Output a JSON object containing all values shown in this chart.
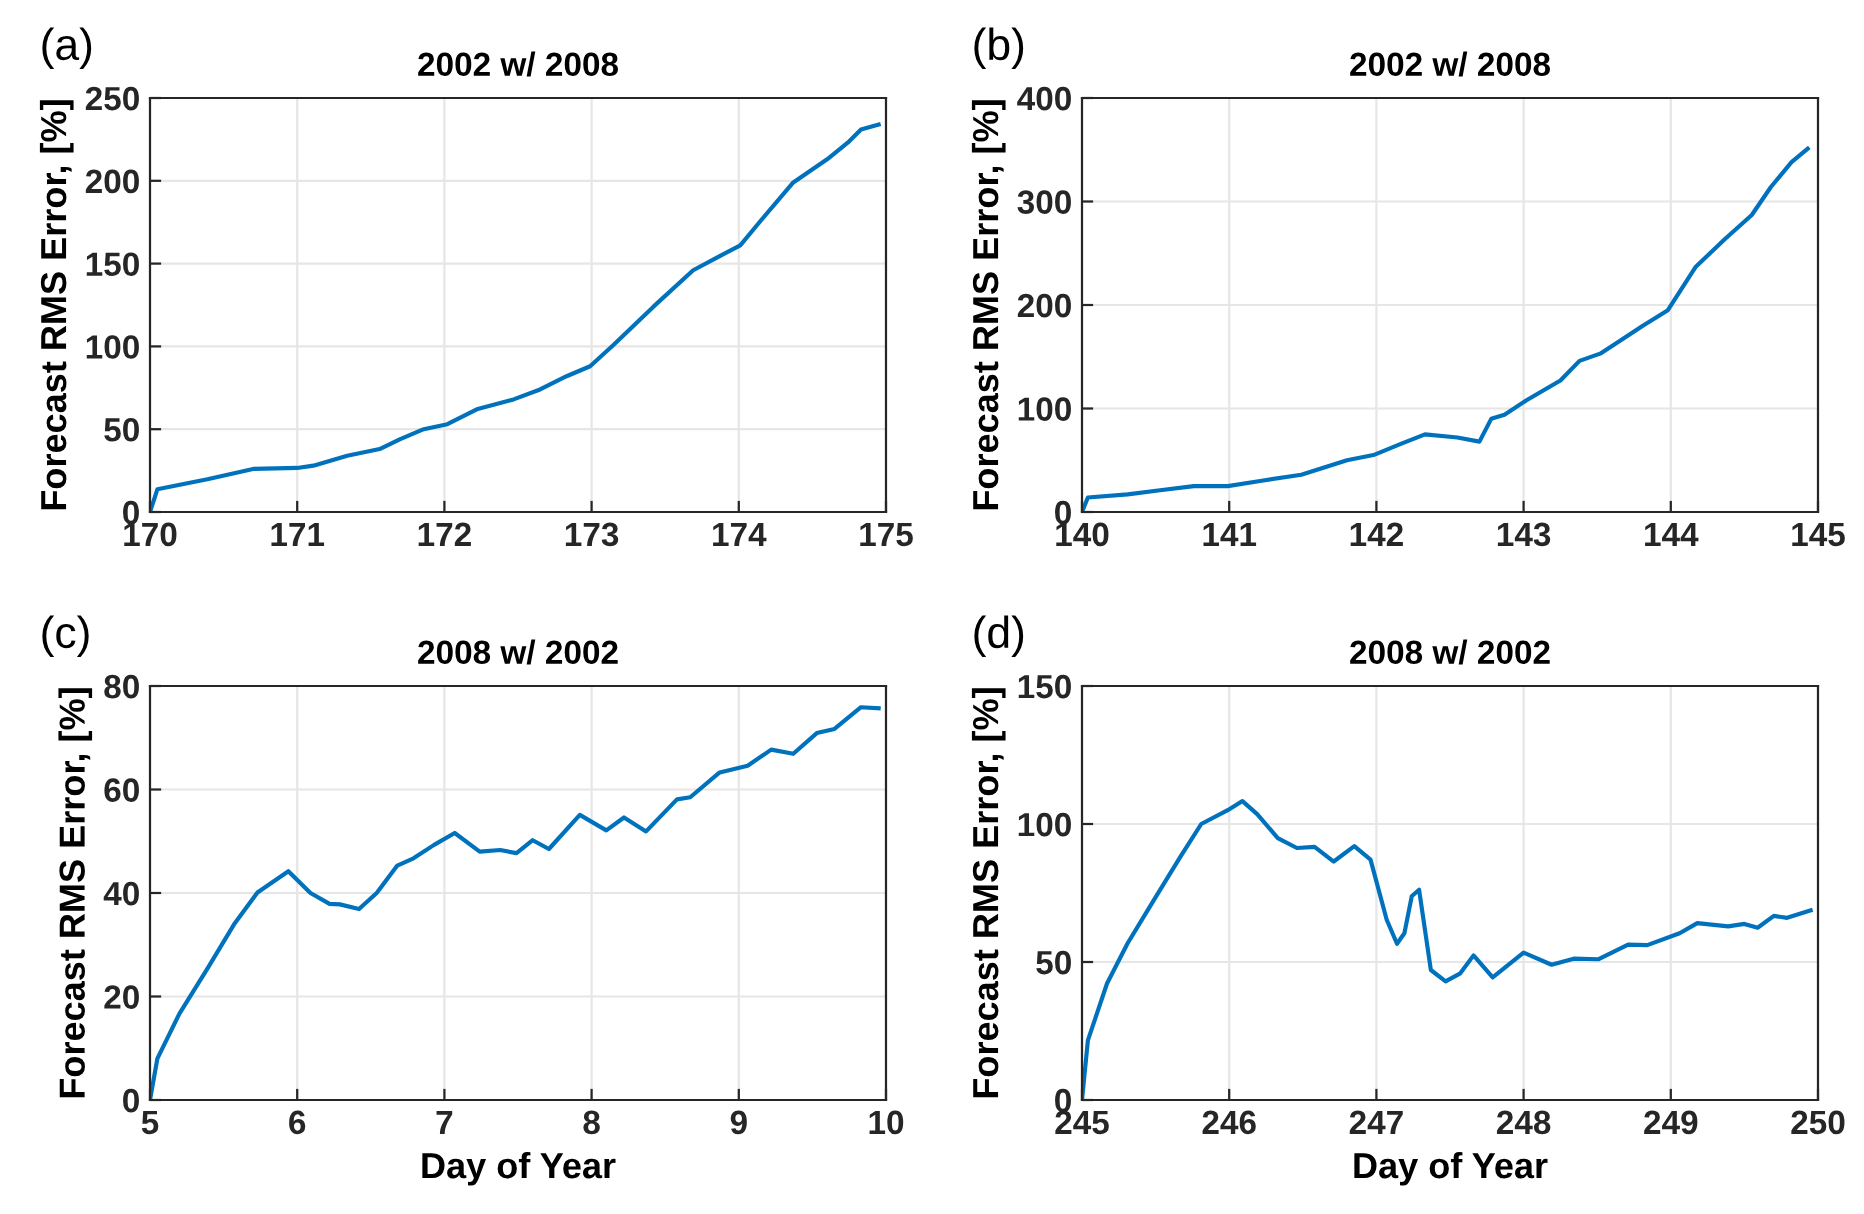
{
  "chart_data": [
    {
      "type": "line",
      "title": "2002 w/ 2008",
      "ylabel": "Forecast RMS Error, [%]",
      "annotations": [
        "(a)"
      ],
      "grid": true,
      "x": [
        170,
        170.05,
        170.39,
        170.7,
        171.0,
        171.11,
        171.34,
        171.56,
        171.7,
        171.86,
        172.02,
        172.22,
        172.47,
        172.65,
        172.83,
        172.99,
        173.15,
        173.42,
        173.69,
        173.88,
        174.01,
        174.15,
        174.37,
        174.6,
        174.74,
        174.83,
        174.95
      ],
      "series": [
        {
          "color": "#0072bd",
          "values": [
            0,
            13.7,
            19.8,
            26,
            26.6,
            28,
            34,
            38,
            44,
            50,
            53,
            62,
            68,
            74,
            82,
            88,
            101,
            124,
            146,
            155,
            161,
            176,
            199,
            213,
            223,
            231,
            234
          ]
        }
      ],
      "xlim": [
        170,
        175
      ],
      "xticks": [
        170,
        171,
        172,
        173,
        174,
        175
      ],
      "ylim": [
        0,
        250
      ],
      "yticks": [
        0,
        50,
        100,
        150,
        200,
        250
      ]
    },
    {
      "type": "line",
      "title": "2002 w/ 2008",
      "ylabel": "Forecast RMS Error, [%]",
      "annotations": [
        "(b)"
      ],
      "grid": true,
      "x": [
        140,
        140.04,
        140.31,
        140.53,
        140.76,
        140.99,
        141.21,
        141.49,
        141.8,
        141.98,
        142.17,
        142.33,
        142.55,
        142.7,
        142.78,
        142.87,
        143.02,
        143.25,
        143.38,
        143.52,
        143.65,
        143.81,
        143.98,
        144.17,
        144.37,
        144.55,
        144.68,
        144.82,
        144.93
      ],
      "series": [
        {
          "color": "#0072bd",
          "values": [
            0,
            14,
            17,
            21,
            25,
            25,
            30,
            36,
            50,
            55,
            66,
            75,
            72,
            68,
            90,
            94,
            108,
            127,
            146,
            153,
            165,
            180,
            195,
            237,
            264,
            287,
            314,
            338,
            351
          ]
        }
      ],
      "xlim": [
        140,
        145
      ],
      "xticks": [
        140,
        141,
        142,
        143,
        144,
        145
      ],
      "ylim": [
        0,
        400
      ],
      "yticks": [
        0,
        100,
        200,
        300,
        400
      ]
    },
    {
      "type": "line",
      "title": "2008 w/ 2002",
      "xlabel": "Day of Year",
      "ylabel": "Forecast RMS Error, [%]",
      "annotations": [
        "(c)"
      ],
      "grid": true,
      "x": [
        5,
        5.05,
        5.2,
        5.39,
        5.57,
        5.73,
        5.94,
        6.09,
        6.22,
        6.29,
        6.42,
        6.54,
        6.68,
        6.79,
        6.93,
        7.07,
        7.24,
        7.38,
        7.49,
        7.6,
        7.71,
        7.92,
        8.1,
        8.22,
        8.37,
        8.58,
        8.67,
        8.87,
        9.06,
        9.22,
        9.37,
        9.53,
        9.65,
        9.83,
        9.95
      ],
      "series": [
        {
          "color": "#0072bd",
          "values": [
            0,
            8,
            16.7,
            25.4,
            33.9,
            40.1,
            44.2,
            40,
            37.9,
            37.8,
            36.9,
            40,
            45.3,
            46.7,
            49.3,
            51.6,
            48,
            48.3,
            47.7,
            50.2,
            48.5,
            55.1,
            52.1,
            54.6,
            51.9,
            58.1,
            58.5,
            63.3,
            64.6,
            67.7,
            66.9,
            70.9,
            71.7,
            75.9,
            75.7
          ]
        }
      ],
      "xlim": [
        5,
        10
      ],
      "xticks": [
        5,
        6,
        7,
        8,
        9,
        10
      ],
      "ylim": [
        0,
        80
      ],
      "yticks": [
        0,
        20,
        40,
        60,
        80
      ]
    },
    {
      "type": "line",
      "title": "2008 w/ 2002",
      "xlabel": "Day of Year",
      "ylabel": "Forecast RMS Error, [%]",
      "annotations": [
        "(d)"
      ],
      "grid": true,
      "x": [
        245,
        245.04,
        245.17,
        245.31,
        245.49,
        245.67,
        245.81,
        245.99,
        246.09,
        246.19,
        246.33,
        246.46,
        246.58,
        246.71,
        246.85,
        246.96,
        247.07,
        247.14,
        247.19,
        247.24,
        247.29,
        247.37,
        247.47,
        247.57,
        247.66,
        247.79,
        248.0,
        248.19,
        248.34,
        248.51,
        248.71,
        248.84,
        249.06,
        249.18,
        249.39,
        249.5,
        249.59,
        249.7,
        249.79,
        249.95
      ],
      "series": [
        {
          "color": "#0072bd",
          "values": [
            0,
            21.6,
            42.2,
            56.8,
            72.6,
            88.3,
            100,
            105,
            108.3,
            103.6,
            94.9,
            91.3,
            91.7,
            86.4,
            92,
            87.1,
            65.3,
            56.6,
            60.4,
            73.8,
            76.2,
            47.1,
            43,
            45.9,
            52.4,
            44.4,
            53.4,
            49,
            51.2,
            51,
            56.3,
            56.1,
            60.4,
            64.1,
            62.9,
            63.8,
            62.4,
            66.7,
            66,
            68.7
          ]
        }
      ],
      "xlim": [
        245,
        250
      ],
      "xticks": [
        245,
        246,
        247,
        248,
        249,
        250
      ],
      "ylim": [
        0,
        150
      ],
      "yticks": [
        0,
        50,
        100,
        150
      ]
    }
  ]
}
